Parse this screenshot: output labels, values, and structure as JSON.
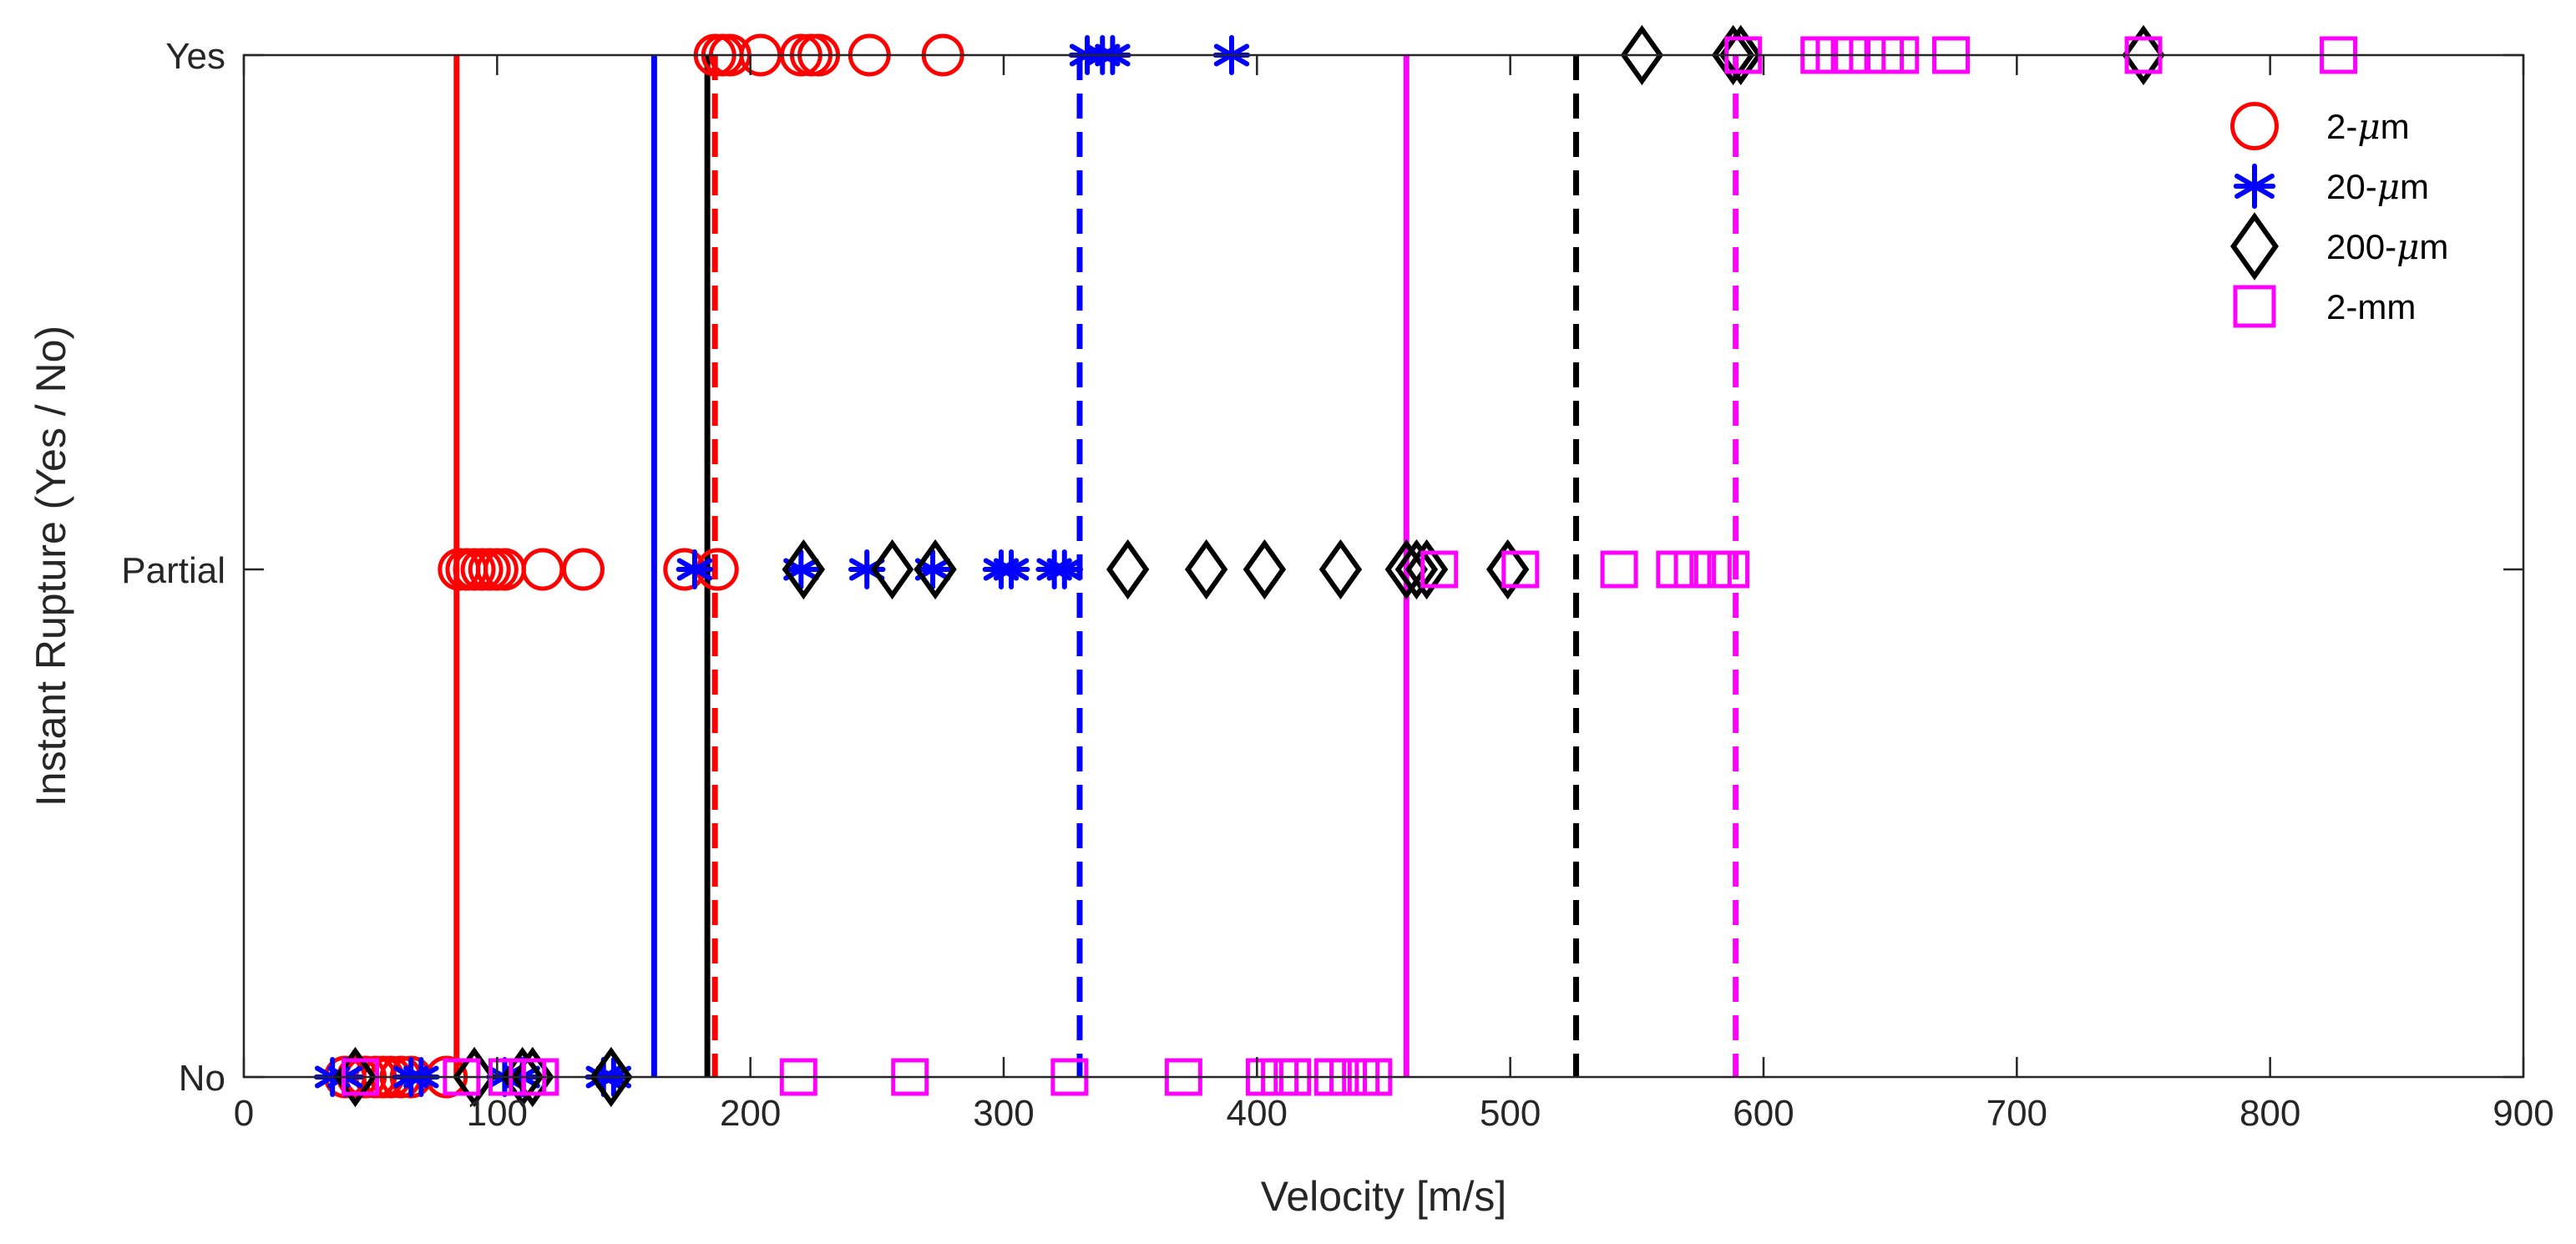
{
  "chart_data": {
    "type": "scatter",
    "xlabel": "Velocity [m/s]",
    "ylabel": "Instant Rupture (Yes / No)",
    "xlim": [
      0,
      900
    ],
    "x_ticks": [
      0,
      100,
      200,
      300,
      400,
      500,
      600,
      700,
      800,
      900
    ],
    "y_categories": [
      "No",
      "Partial",
      "Yes"
    ],
    "legend_position": "top-right",
    "series": [
      {
        "name": "2-μm",
        "label_prefix": "2-",
        "label_suffix": "m",
        "marker": "circle",
        "color": "#ff0000",
        "points": [
          {
            "x": 40,
            "y": "No"
          },
          {
            "x": 45,
            "y": "No"
          },
          {
            "x": 48,
            "y": "No"
          },
          {
            "x": 52,
            "y": "No"
          },
          {
            "x": 55,
            "y": "No"
          },
          {
            "x": 58,
            "y": "No"
          },
          {
            "x": 62,
            "y": "No"
          },
          {
            "x": 66,
            "y": "No"
          },
          {
            "x": 80,
            "y": "No"
          },
          {
            "x": 85,
            "y": "Partial"
          },
          {
            "x": 88,
            "y": "Partial"
          },
          {
            "x": 91,
            "y": "Partial"
          },
          {
            "x": 94,
            "y": "Partial"
          },
          {
            "x": 97,
            "y": "Partial"
          },
          {
            "x": 100,
            "y": "Partial"
          },
          {
            "x": 103,
            "y": "Partial"
          },
          {
            "x": 118,
            "y": "Partial"
          },
          {
            "x": 134,
            "y": "Partial"
          },
          {
            "x": 174,
            "y": "Partial"
          },
          {
            "x": 187,
            "y": "Partial"
          },
          {
            "x": 186,
            "y": "Yes"
          },
          {
            "x": 189,
            "y": "Yes"
          },
          {
            "x": 192,
            "y": "Yes"
          },
          {
            "x": 204,
            "y": "Yes"
          },
          {
            "x": 220,
            "y": "Yes"
          },
          {
            "x": 224,
            "y": "Yes"
          },
          {
            "x": 227,
            "y": "Yes"
          },
          {
            "x": 247,
            "y": "Yes"
          },
          {
            "x": 276,
            "y": "Yes"
          }
        ],
        "solid_line_x": 84,
        "dashed_line_x": 186
      },
      {
        "name": "20-μm",
        "label_prefix": "20-",
        "label_suffix": "m",
        "marker": "asterisk",
        "color": "#0000ff",
        "points": [
          {
            "x": 35,
            "y": "No"
          },
          {
            "x": 40,
            "y": "No"
          },
          {
            "x": 66,
            "y": "No"
          },
          {
            "x": 70,
            "y": "No"
          },
          {
            "x": 103,
            "y": "No"
          },
          {
            "x": 110,
            "y": "No"
          },
          {
            "x": 142,
            "y": "No"
          },
          {
            "x": 146,
            "y": "No"
          },
          {
            "x": 178,
            "y": "Partial"
          },
          {
            "x": 220,
            "y": "Partial"
          },
          {
            "x": 246,
            "y": "Partial"
          },
          {
            "x": 272,
            "y": "Partial"
          },
          {
            "x": 299,
            "y": "Partial"
          },
          {
            "x": 303,
            "y": "Partial"
          },
          {
            "x": 320,
            "y": "Partial"
          },
          {
            "x": 324,
            "y": "Partial"
          },
          {
            "x": 333,
            "y": "Yes"
          },
          {
            "x": 339,
            "y": "Yes"
          },
          {
            "x": 343,
            "y": "Yes"
          },
          {
            "x": 390,
            "y": "Yes"
          }
        ],
        "solid_line_x": 162,
        "dashed_line_x": 330
      },
      {
        "name": "200-μm",
        "label_prefix": "200-",
        "label_suffix": "m",
        "marker": "diamond",
        "color": "#000000",
        "points": [
          {
            "x": 44,
            "y": "No"
          },
          {
            "x": 91,
            "y": "No"
          },
          {
            "x": 110,
            "y": "No"
          },
          {
            "x": 114,
            "y": "No"
          },
          {
            "x": 145,
            "y": "No"
          },
          {
            "x": 221,
            "y": "Partial"
          },
          {
            "x": 256,
            "y": "Partial"
          },
          {
            "x": 273,
            "y": "Partial"
          },
          {
            "x": 349,
            "y": "Partial"
          },
          {
            "x": 380,
            "y": "Partial"
          },
          {
            "x": 403,
            "y": "Partial"
          },
          {
            "x": 433,
            "y": "Partial"
          },
          {
            "x": 459,
            "y": "Partial"
          },
          {
            "x": 463,
            "y": "Partial"
          },
          {
            "x": 467,
            "y": "Partial"
          },
          {
            "x": 499,
            "y": "Partial"
          },
          {
            "x": 552,
            "y": "Yes"
          },
          {
            "x": 588,
            "y": "Yes"
          },
          {
            "x": 591,
            "y": "Yes"
          },
          {
            "x": 750,
            "y": "Yes"
          }
        ],
        "solid_line_x": 183,
        "dashed_line_x": 526
      },
      {
        "name": "2-mm",
        "label_prefix": "2-mm",
        "label_suffix": "",
        "marker": "square",
        "color": "#ff00ff",
        "points": [
          {
            "x": 46,
            "y": "No"
          },
          {
            "x": 86,
            "y": "No"
          },
          {
            "x": 104,
            "y": "No"
          },
          {
            "x": 112,
            "y": "No"
          },
          {
            "x": 117,
            "y": "No"
          },
          {
            "x": 219,
            "y": "No"
          },
          {
            "x": 263,
            "y": "No"
          },
          {
            "x": 326,
            "y": "No"
          },
          {
            "x": 371,
            "y": "No"
          },
          {
            "x": 403,
            "y": "No"
          },
          {
            "x": 409,
            "y": "No"
          },
          {
            "x": 414,
            "y": "No"
          },
          {
            "x": 430,
            "y": "No"
          },
          {
            "x": 436,
            "y": "No"
          },
          {
            "x": 441,
            "y": "No"
          },
          {
            "x": 446,
            "y": "No"
          },
          {
            "x": 472,
            "y": "Partial"
          },
          {
            "x": 504,
            "y": "Partial"
          },
          {
            "x": 543,
            "y": "Partial"
          },
          {
            "x": 565,
            "y": "Partial"
          },
          {
            "x": 572,
            "y": "Partial"
          },
          {
            "x": 580,
            "y": "Partial"
          },
          {
            "x": 587,
            "y": "Partial"
          },
          {
            "x": 592,
            "y": "Yes"
          },
          {
            "x": 622,
            "y": "Yes"
          },
          {
            "x": 628,
            "y": "Yes"
          },
          {
            "x": 634,
            "y": "Yes"
          },
          {
            "x": 648,
            "y": "Yes"
          },
          {
            "x": 654,
            "y": "Yes"
          },
          {
            "x": 674,
            "y": "Yes"
          },
          {
            "x": 750,
            "y": "Yes"
          },
          {
            "x": 827,
            "y": "Yes"
          }
        ],
        "solid_line_x": 459,
        "dashed_line_x": 589
      }
    ]
  }
}
